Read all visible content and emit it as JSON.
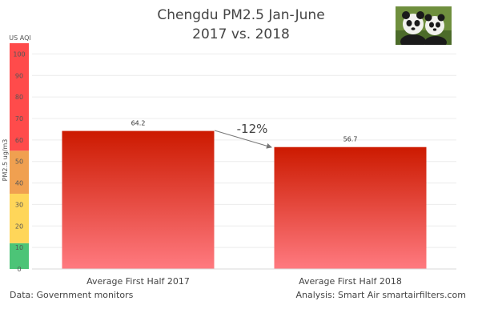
{
  "title_line1": "Chengdu PM2.5 Jan-June",
  "title_line2": "2017 vs. 2018",
  "footer": {
    "source": "Data: Government monitors",
    "analysis": "Analysis: Smart Air smartairfilters.com"
  },
  "annotation": {
    "change": "-12%"
  },
  "colors": {
    "bar_top": "#cc1a00",
    "bar_bottom": "#ff7a80",
    "aqi_red": "#ff4b4b",
    "aqi_orange": "#f0a050",
    "aqi_yellow": "#ffd659",
    "aqi_green": "#4cc477"
  },
  "photo": {
    "icon": "panda-photo"
  },
  "chart_data": {
    "type": "bar",
    "categories": [
      "Average First Half 2017",
      "Average First Half 2018"
    ],
    "values": [
      64.2,
      56.7
    ],
    "data_labels": [
      "64.2",
      "56.7"
    ],
    "ylabel": "PM2.5 ug/m3",
    "y2label": "US AQI",
    "ylim": [
      0,
      105
    ],
    "yticks": [
      0,
      10,
      20,
      30,
      40,
      50,
      60,
      70,
      80,
      90,
      100
    ],
    "aqi_bands": [
      {
        "from": 0,
        "to": 12,
        "color": "green"
      },
      {
        "from": 12,
        "to": 35,
        "color": "yellow"
      },
      {
        "from": 35,
        "to": 55,
        "color": "orange"
      },
      {
        "from": 55,
        "to": 105,
        "color": "red"
      }
    ],
    "grid": true,
    "legend": "none"
  }
}
